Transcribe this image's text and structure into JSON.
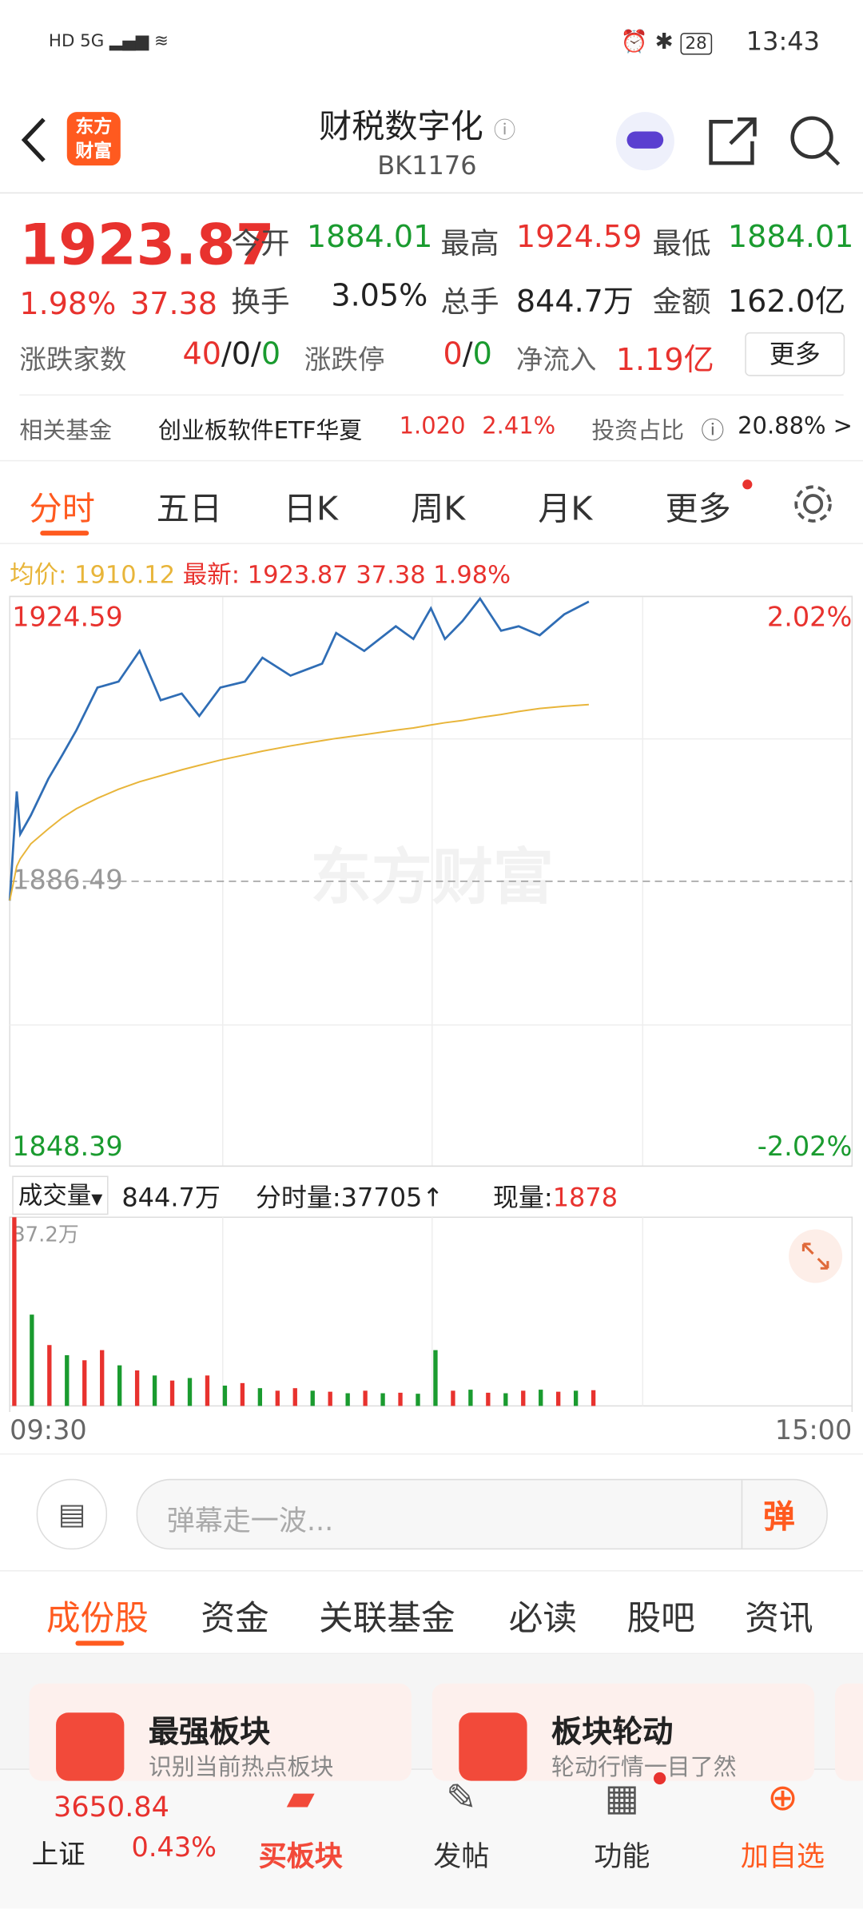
{
  "status_bar": {
    "time": "13:43",
    "battery": "28"
  },
  "header": {
    "logo": [
      "东方",
      "财富"
    ],
    "title": "财税数字化",
    "code": "BK1176"
  },
  "quote": {
    "price": "1923.87",
    "change_pct": "1.98%",
    "change": "37.38",
    "stats": [
      {
        "label": "今开",
        "value": "1884.01"
      },
      {
        "label": "最高",
        "value": "1924.59"
      },
      {
        "label": "最低",
        "value": "1884.01"
      },
      {
        "label": "换手",
        "value": "3.05%"
      },
      {
        "label": "总手",
        "value": "844.7万"
      },
      {
        "label": "金额",
        "value": "162.0亿"
      }
    ],
    "breadth_label": "涨跌家数",
    "breadth": [
      "40",
      "/0/",
      "0"
    ],
    "limit_label": "涨跌停",
    "limit": [
      "0",
      "/",
      "0"
    ],
    "flow_label": "净流入",
    "flow": "1.19亿",
    "more": "更多"
  },
  "fund": {
    "label": "相关基金",
    "name": "创业板软件ETF华夏",
    "price": "1.020",
    "pct": "2.41%",
    "ratio_label": "投资占比",
    "ratio": "20.88% >"
  },
  "tabs": [
    "分时",
    "五日",
    "日K",
    "周K",
    "月K",
    "更多"
  ],
  "summary": {
    "avg_label": "均价:",
    "avg": "1910.12",
    "last_label": "最新:",
    "last": "1923.87",
    "change": "37.38",
    "pct": "1.98%"
  },
  "watermark": "东方财富",
  "chart_data": [
    {
      "type": "line",
      "x": [
        0,
        2,
        3,
        6,
        11,
        15,
        19,
        25,
        31,
        37,
        43,
        49,
        54,
        60,
        67,
        72,
        80,
        89,
        93,
        101,
        110,
        115,
        120,
        124,
        129,
        134,
        140,
        145,
        151,
        158,
        165
      ],
      "series": [
        {
          "color": "#2f6db5",
          "values": [
            1883.9,
            1898.5,
            1892.8,
            1895.3,
            1900.2,
            1903.4,
            1906.7,
            1912.4,
            1913.2,
            1917.3,
            1910.7,
            1911.6,
            1908.6,
            1912.4,
            1913.2,
            1916.4,
            1914.0,
            1915.6,
            1919.7,
            1917.3,
            1920.6,
            1918.9,
            1923.0,
            1918.9,
            1921.3,
            1924.3,
            1920.0,
            1920.6,
            1919.4,
            1922.2,
            1923.9
          ]
        },
        {
          "color": "#e8b53a",
          "values": [
            1883.9,
            1888.5,
            1889.5,
            1891.5,
            1893.5,
            1895.0,
            1896.2,
            1897.6,
            1898.8,
            1899.8,
            1900.6,
            1901.4,
            1902.0,
            1902.7,
            1903.4,
            1903.9,
            1904.6,
            1905.3,
            1905.6,
            1906.1,
            1906.7,
            1907.0,
            1907.4,
            1907.7,
            1908.0,
            1908.4,
            1908.8,
            1909.2,
            1909.6,
            1909.9,
            1910.12
          ]
        }
      ],
      "xlim": [
        0,
        240
      ],
      "ylim": [
        1848.39,
        1924.59
      ],
      "yticks": [
        1848.39,
        1886.49,
        1924.59
      ],
      "y2lim": [
        -2.02,
        2.02
      ],
      "y2ticks": [
        {
          "value": -2.02,
          "label": "-2.02%"
        },
        {
          "value": 2.02,
          "label": "2.02%"
        }
      ]
    },
    {
      "type": "bar",
      "x": [
        0,
        5,
        10,
        15,
        20,
        25,
        30,
        35,
        40,
        45,
        50,
        55,
        60,
        65,
        70,
        75,
        80,
        85,
        90,
        95,
        100,
        105,
        110,
        115,
        120,
        125,
        130,
        135,
        140,
        145,
        150,
        155,
        160,
        165
      ],
      "values": [
        37.2,
        18,
        12,
        10,
        9,
        11,
        8,
        7,
        6,
        5,
        5.5,
        6,
        4,
        4.5,
        3.5,
        3,
        3.5,
        3,
        2.8,
        2.5,
        3,
        2.5,
        2.6,
        2.4,
        11,
        3,
        3.2,
        2.6,
        2.5,
        3,
        3.2,
        2.8,
        3,
        3.1
      ],
      "colors": [
        "#e8322e",
        "#1a9b2f",
        "#e8322e",
        "#1a9b2f",
        "#e8322e",
        "#e8322e",
        "#1a9b2f",
        "#e8322e",
        "#1a9b2f",
        "#e8322e",
        "#1a9b2f",
        "#e8322e",
        "#1a9b2f",
        "#e8322e",
        "#1a9b2f",
        "#e8322e",
        "#e8322e",
        "#1a9b2f",
        "#e8322e",
        "#1a9b2f",
        "#e8322e",
        "#1a9b2f",
        "#e8322e",
        "#1a9b2f",
        "#1a9b2f",
        "#e8322e",
        "#1a9b2f",
        "#e8322e",
        "#1a9b2f",
        "#e8322e",
        "#1a9b2f",
        "#e8322e",
        "#1a9b2f",
        "#e8322e"
      ],
      "xlim": [
        0,
        240
      ],
      "ylim": [
        0,
        37.2
      ],
      "yticks": [
        {
          "value": 37.2,
          "label": "37.2万"
        }
      ],
      "xticks": [
        {
          "value": 0,
          "label": "09:30"
        },
        {
          "value": 240,
          "label": "15:00"
        }
      ]
    }
  ],
  "volume_bar": {
    "label": "成交量",
    "total": "844.7万",
    "minute_label": "分时量:",
    "minute": "37705↑",
    "now_label": "现量:",
    "now": "1878"
  },
  "comment_placeholder": "弹幕走一波...",
  "danmu": "弹",
  "sub_tabs": [
    "成份股",
    "资金",
    "关联基金",
    "必读",
    "股吧",
    "资讯"
  ],
  "cards": [
    {
      "title": "最强板块",
      "desc": "识别当前热点板块"
    },
    {
      "title": "板块轮动",
      "desc": "轮动行情一目了然"
    }
  ],
  "bottom": {
    "index_value": "3650.84",
    "index_name": "上证",
    "index_pct": "0.43%",
    "items": [
      "买板块",
      "发帖",
      "功能",
      "加自选"
    ]
  }
}
